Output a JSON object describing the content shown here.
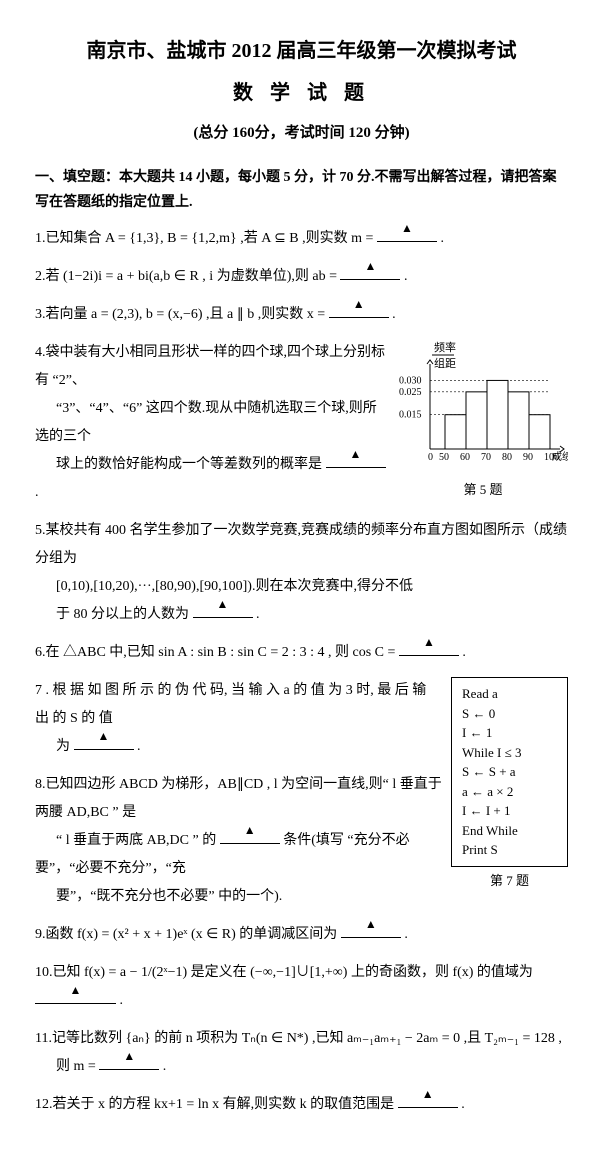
{
  "title": {
    "line1": "南京市、盐城市 2012 届高三年级第一次模拟考试",
    "line2": "数 学 试 题",
    "info": "(总分 160分，考试时间 120 分钟)"
  },
  "section1_header": "一、填空题：本大题共 14 小题，每小题 5 分，计 70 分.不需写出解答过程，请把答案写在答题纸的指定位置上.",
  "q1": "1.已知集合 A = {1,3}, B = {1,2,m} ,若 A ⊆ B ,则实数 m =",
  "q2": "2.若 (1−2i)i = a + bi(a,b ∈ R , i 为虚数单位),则 ab =",
  "q3": "3.若向量 a = (2,3), b = (x,−6) ,且 a ∥ b ,则实数 x =",
  "q4_l1": "4.袋中装有大小相同且形状一样的四个球,四个球上分别标有 “2”、",
  "q4_l2": "“3”、“4”、“6” 这四个数.现从中随机选取三个球,则所选的三个",
  "q4_l3": "球上的数恰好能构成一个等差数列的概率是",
  "q5_l1": "5.某校共有 400 名学生参加了一次数学竞赛,竞赛成绩的频率分布直方图如图所示（成绩分组为",
  "q5_l2": "[0,10),[10,20),···,[80,90),[90,100]).则在本次竞赛中,得分不低",
  "q5_l3": "于 80 分以上的人数为",
  "q6": "6.在 △ABC 中,已知 sin A : sin B : sin C = 2 : 3 : 4 , 则 cos C =",
  "q7_l1": "7 . 根 据 如 图 所 示 的 伪 代 码, 当 输 入 a 的 值 为  3  时, 最 后 输 出 的  S  的 值",
  "q7_l2": "为",
  "q8_l1": "8.已知四边形 ABCD 为梯形，AB∥CD , l 为空间一直线,则“ l 垂直于两腰 AD,BC ” 是",
  "q8_l2": "“ l 垂直于两底 AB,DC ” 的",
  "q8_l3": "条件(填写 “充分不必要”，“必要不充分”，“充",
  "q8_l4": "要”，“既不充分也不必要” 中的一个).",
  "q9": "9.函数 f(x) = (x² + x + 1)eˣ (x ∈ R) 的单调减区间为",
  "q10_l1": "10.已知 f(x) = a − 1/(2ˣ−1) 是定义在 (−∞,−1]∪[1,+∞) 上的奇函数，则 f(x) 的值域为",
  "q11_l1": "11.记等比数列 {aₙ} 的前 n 项积为 Tₙ(n ∈ N*) ,已知 aₘ₋₁aₘ₊₁ − 2aₘ = 0 ,且 T₂ₘ₋₁ = 128 ,",
  "q11_l2": "则 m =",
  "q12": "12.若关于 x 的方程 kx+1 = ln x 有解,则实数 k 的取值范围是",
  "histogram": {
    "ylabel_top": "频率",
    "ylabel_bot": "组距",
    "y_ticks": [
      "0.030",
      "0.025",
      "0.015"
    ],
    "x_ticks": [
      "0",
      "50",
      "60",
      "70",
      "80",
      "90",
      "100"
    ],
    "xlabel": "成绩",
    "caption": "第 5 题",
    "bars": [
      {
        "x": 50,
        "h": 0.015
      },
      {
        "x": 60,
        "h": 0.025
      },
      {
        "x": 70,
        "h": 0.03
      },
      {
        "x": 80,
        "h": 0.025
      },
      {
        "x": 90,
        "h": 0.015
      }
    ],
    "colors": {
      "bar_fill": "#ffffff",
      "bar_stroke": "#000000",
      "axis": "#000000",
      "dash": "#000000"
    }
  },
  "pseudocode": {
    "lines": [
      "Read   a",
      "S ← 0",
      "I ← 1",
      "While   I ≤ 3",
      "  S ← S + a",
      "  a ← a × 2",
      "  I ← I + 1",
      "End   While",
      "Print   S"
    ],
    "caption": "第 7 题"
  },
  "period": "."
}
